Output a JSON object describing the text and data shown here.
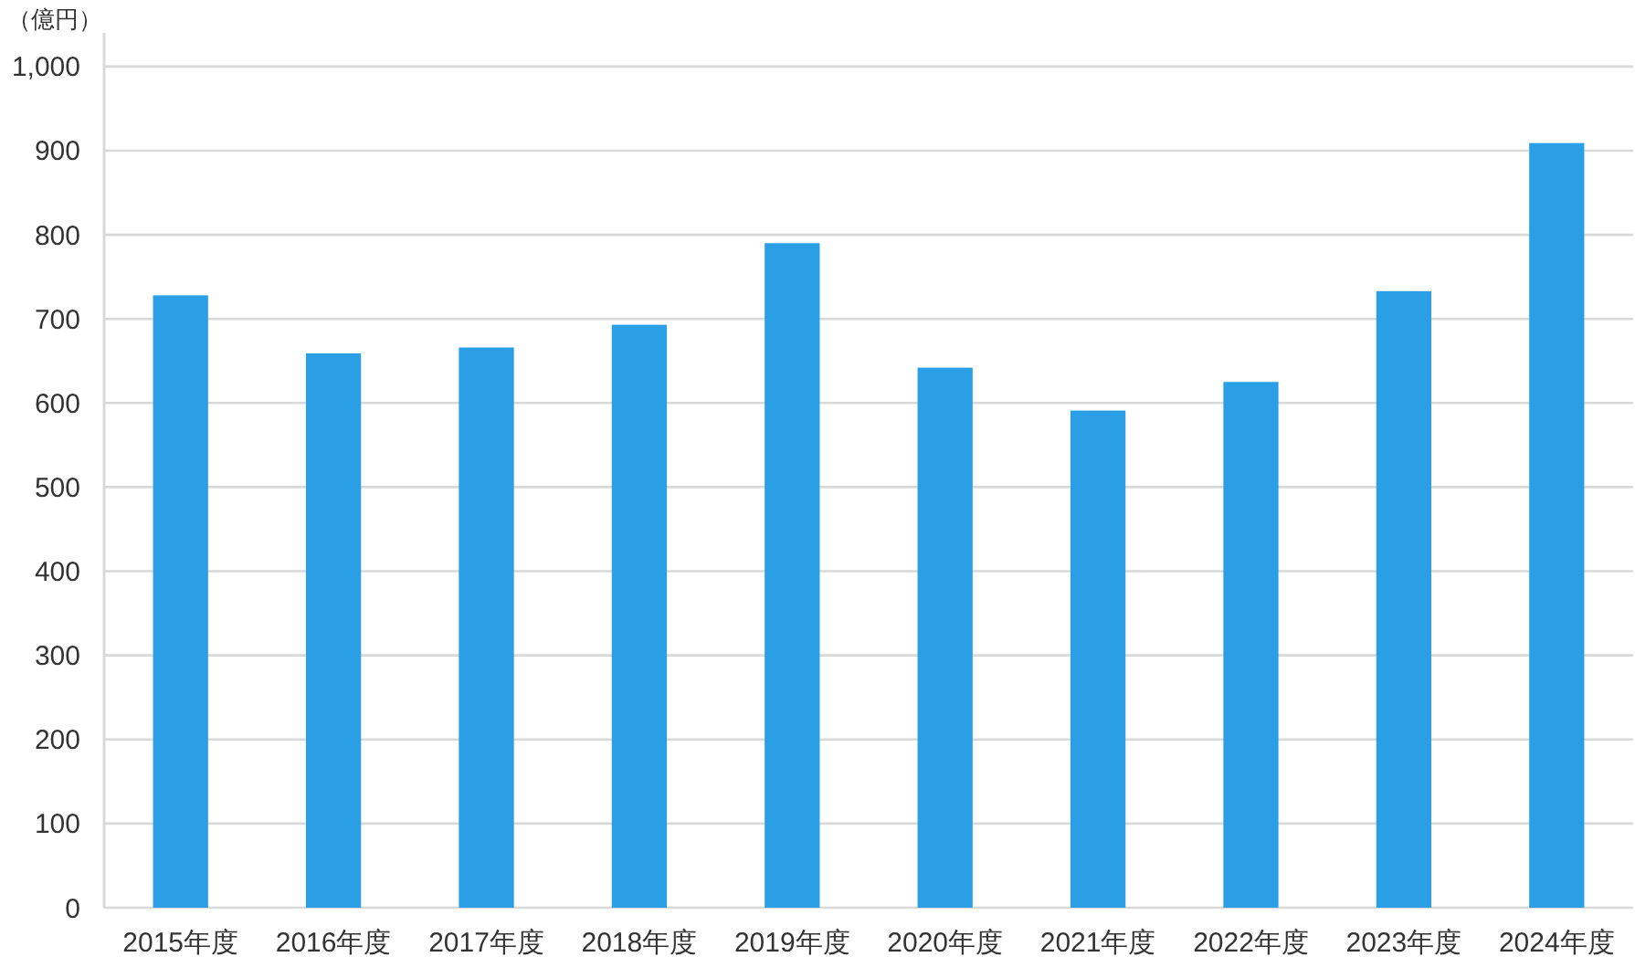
{
  "chart_data": {
    "type": "bar",
    "ylabel": "（億円）",
    "categories": [
      "2015年度",
      "2016年度",
      "2017年度",
      "2018年度",
      "2019年度",
      "2020年度",
      "2021年度",
      "2022年度",
      "2023年度",
      "2024年度"
    ],
    "values": [
      728,
      659,
      666,
      693,
      790,
      642,
      591,
      625,
      733,
      909
    ],
    "color": "#2a9fe5",
    "ylim": [
      0,
      1040
    ],
    "yticks": [
      0,
      100,
      200,
      300,
      400,
      500,
      600,
      700,
      800,
      900,
      {
        "value": 1000,
        "label": "1,000"
      }
    ],
    "grid": "y"
  }
}
